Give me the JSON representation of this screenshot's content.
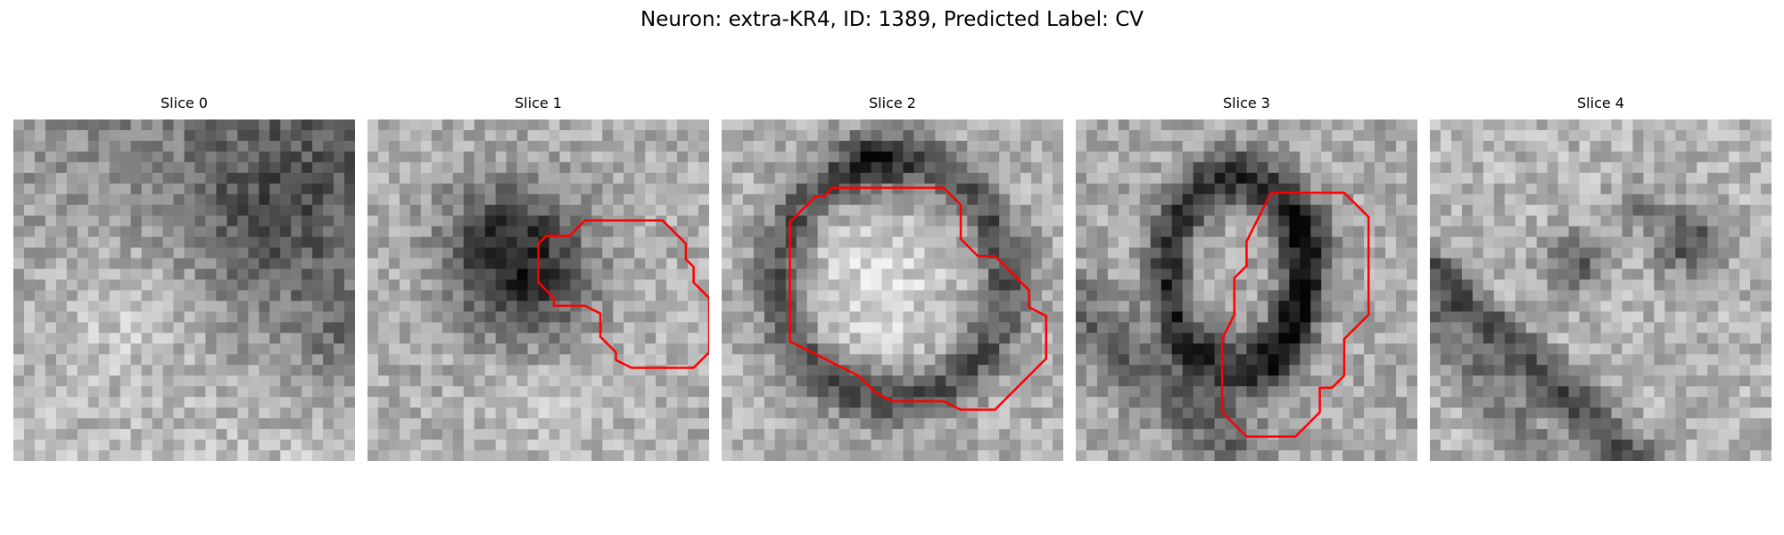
{
  "figure": {
    "title": "Neuron: extra-KR4, ID: 1389, Predicted Label: CV",
    "contour_color": "#ff0000"
  },
  "panels": [
    {
      "title": "Slice 0"
    },
    {
      "title": "Slice 1"
    },
    {
      "title": "Slice 2"
    },
    {
      "title": "Slice 3"
    },
    {
      "title": "Slice 4"
    }
  ]
}
